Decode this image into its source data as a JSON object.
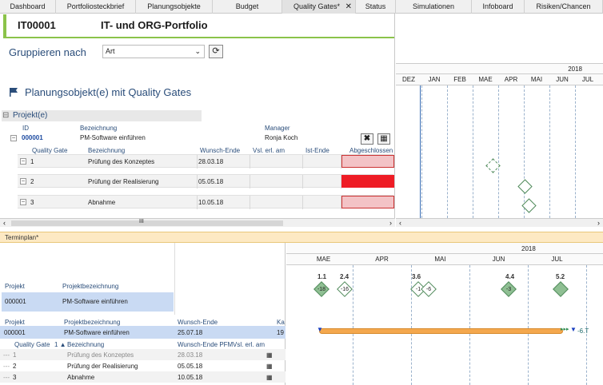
{
  "tabs": [
    "Dashboard",
    "Portfoliosteckbrief",
    "Planungsobjekte",
    "Budget",
    "Quality Gates*",
    "Status",
    "Simulationen",
    "Infoboard",
    "Risiken/Chancen"
  ],
  "title": {
    "id": "IT00001",
    "name": "IT- und ORG-Portfolio"
  },
  "grouping": {
    "label": "Gruppieren nach",
    "value": "Art"
  },
  "section_title": "Planungsobjekt(e) mit Quality Gates",
  "project_group": {
    "label": "Projekt(e)",
    "headers": {
      "id": "ID",
      "bezeichnung": "Bezeichnung",
      "manager": "Manager"
    },
    "project": {
      "id": "000001",
      "bezeichnung": "PM-Software einführen",
      "manager": "Ronja Koch"
    }
  },
  "qg_headers": {
    "gate": "Quality Gate",
    "bezeichnung": "Bezeichnung",
    "wunsch": "Wunsch-Ende",
    "vsl": "Vsl. erl. am",
    "ist": "Ist-Ende",
    "abgeschlossen": "Abgeschlossen"
  },
  "quality_gates": [
    {
      "nr": "1",
      "bezeichnung": "Prüfung des Konzeptes",
      "wunsch": "28.03.18",
      "status_color": "#f3c3c6"
    },
    {
      "nr": "2",
      "bezeichnung": "Prüfung der Realisierung",
      "wunsch": "05.05.18",
      "status_color": "#ee1c25"
    },
    {
      "nr": "3",
      "bezeichnung": "Abnahme",
      "wunsch": "10.05.18",
      "status_color": "#f3c3c6"
    }
  ],
  "gantt_top": {
    "year": "2018",
    "months": [
      "DEZ",
      "JAN",
      "FEB",
      "MAE",
      "APR",
      "MAI",
      "JUN",
      "JUL"
    ]
  },
  "scrollbar_grip": "III",
  "terminplan": {
    "label": "Terminplan*"
  },
  "bottom_left": {
    "h1": {
      "projekt": "Projekt",
      "bezeichnung": "Projektbezeichnung"
    },
    "r1": {
      "projekt": "000001",
      "bezeichnung": "PM-Software einführen"
    },
    "h2": {
      "projekt": "Projekt",
      "bezeichnung": "Projektbezeichnung",
      "wunsch": "Wunsch-Ende",
      "ka": "Ka"
    },
    "r2": {
      "projekt": "000001",
      "bezeichnung": "PM-Software einführen",
      "wunsch": "25.07.18",
      "ka": "19"
    },
    "h3": {
      "gate": "Quality Gate",
      "sort": "1",
      "bezeichnung": "Bezeichnung",
      "wunsch": "Wunsch-Ende PFM",
      "vsl": "Vsl. erl. am"
    },
    "rows": [
      {
        "nr": "1",
        "bezeichnung": "Prüfung des Konzeptes",
        "wunsch": "28.03.18"
      },
      {
        "nr": "2",
        "bezeichnung": "Prüfung der Realisierung",
        "wunsch": "05.05.18"
      },
      {
        "nr": "3",
        "bezeichnung": "Abnahme",
        "wunsch": "10.05.18"
      }
    ]
  },
  "gantt_bottom": {
    "year": "2018",
    "months": [
      "MAE",
      "APR",
      "MAI",
      "JUN",
      "JUL"
    ],
    "milestones": [
      {
        "label": "1.1",
        "value": "-18"
      },
      {
        "label": "2.4",
        "value": "-16"
      },
      {
        "label": "3.6",
        "value": "-1"
      },
      {
        "label": "",
        "value": "-6"
      },
      {
        "label": "4.4",
        "value": "-3"
      },
      {
        "label": "5.2",
        "value": ""
      }
    ],
    "bar_end_label": "-6.T"
  }
}
